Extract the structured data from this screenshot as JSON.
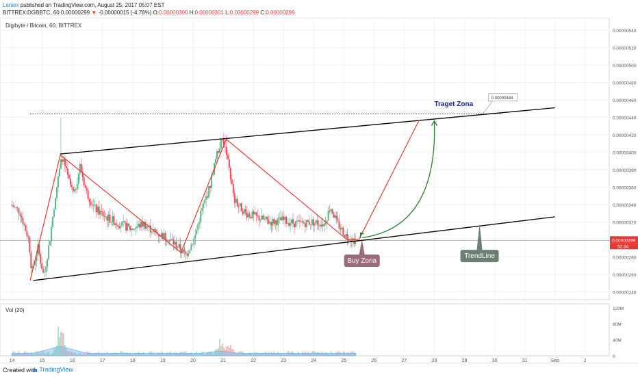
{
  "header": {
    "author": "Leniex",
    "published": "published on TradingView.com, August 25, 2017 05:07 EST",
    "symbol_line": "BITTREX:DGBBTC, 60",
    "last": "0.00000299",
    "arrow": "▼",
    "change": "-0.00000015 (-4.78%)",
    "o_label": "O:",
    "o_val": "0.00000300",
    "h_label": "H:",
    "h_val": "0.00000301",
    "l_label": "L:",
    "l_val": "0.00000299",
    "c_label": "C:",
    "c_val": "0.00000299"
  },
  "chart_title": "Digibyte / Bitcoin, 60, BITTREX",
  "price_axis": {
    "labels": [
      "0.00000540",
      "0.00000520",
      "0.00000500",
      "0.00000480",
      "0.00000460",
      "0.00000440",
      "0.00000420",
      "0.00000400",
      "0.00000380",
      "0.00000360",
      "0.00000340",
      "0.00000320",
      "0.00000300",
      "0.00000280",
      "0.00000260",
      "0.00000240"
    ],
    "current_price": "0.00000299",
    "countdown": "52:34"
  },
  "volume_axis": {
    "labels": [
      "120M",
      "80M",
      "40M",
      "0"
    ]
  },
  "volume_label": "Vol (20)",
  "x_axis": {
    "labels": [
      "14",
      "15",
      "16",
      "17",
      "18",
      "19",
      "20",
      "21",
      "22",
      "23",
      "24",
      "25",
      "26",
      "27",
      "28",
      "29",
      "30",
      "31",
      "Sep",
      "2"
    ]
  },
  "annotations": {
    "target_label": "Traget Zona",
    "target_price": "0.00000444",
    "buy_label": "Buy Zona",
    "trendline_label": "TrendLine"
  },
  "colors": {
    "up": "#53b987",
    "down": "#eb4d5c",
    "red_line": "#e53935",
    "green_arrow": "#2e7d32",
    "buy_box": "#9c6b78",
    "trend_box": "#6b7f72",
    "target_text": "#1a237e",
    "volume_ma": "#6fb7e8"
  },
  "chart_data": {
    "type": "candlestick",
    "symbol": "BITTREX:DGBBTC",
    "interval": "60",
    "ylim": [
      2.31e-06,
      5.51e-06
    ],
    "x_days": [
      14,
      15,
      16,
      17,
      18,
      19,
      20,
      21,
      22,
      23,
      24,
      25,
      26,
      27,
      28,
      29,
      30,
      31,
      32,
      33
    ],
    "price_path": [
      [
        14.0,
        3.4e-06
      ],
      [
        14.3,
        3.32e-06
      ],
      [
        14.6,
        3e-06
      ],
      [
        14.7,
        2.62e-06
      ],
      [
        14.9,
        2.9e-06
      ],
      [
        15.1,
        2.58e-06
      ],
      [
        15.3,
        3e-06
      ],
      [
        15.5,
        3.55e-06
      ],
      [
        15.7,
        3.95e-06
      ],
      [
        15.9,
        3.7e-06
      ],
      [
        16.1,
        3.5e-06
      ],
      [
        16.3,
        3.85e-06
      ],
      [
        16.5,
        3.55e-06
      ],
      [
        16.8,
        3.35e-06
      ],
      [
        17.2,
        3.25e-06
      ],
      [
        17.6,
        3.18e-06
      ],
      [
        18.0,
        3.12e-06
      ],
      [
        18.4,
        3.18e-06
      ],
      [
        18.8,
        3.08e-06
      ],
      [
        19.2,
        3.02e-06
      ],
      [
        19.6,
        2.9e-06
      ],
      [
        19.8,
        2.82e-06
      ],
      [
        20.1,
        3.02e-06
      ],
      [
        20.3,
        3.3e-06
      ],
      [
        20.6,
        3.6e-06
      ],
      [
        20.8,
        3.95e-06
      ],
      [
        21.0,
        4.13e-06
      ],
      [
        21.2,
        3.95e-06
      ],
      [
        21.4,
        3.45e-06
      ],
      [
        21.8,
        3.3e-06
      ],
      [
        22.2,
        3.25e-06
      ],
      [
        22.6,
        3.2e-06
      ],
      [
        23.0,
        3.22e-06
      ],
      [
        23.5,
        3.18e-06
      ],
      [
        24.0,
        3.2e-06
      ],
      [
        24.4,
        3.18e-06
      ],
      [
        24.6,
        3.38e-06
      ],
      [
        24.8,
        3.2e-06
      ],
      [
        25.1,
        3.05e-06
      ],
      [
        25.4,
        2.99e-06
      ]
    ],
    "spikes": [
      [
        15.6,
        4.4e-06
      ],
      [
        21.1,
        4.2e-06
      ]
    ],
    "volume_peaks": [
      [
        15.6,
        95000000
      ],
      [
        20.9,
        50000000
      ],
      [
        21.2,
        35000000
      ]
    ],
    "trendline_lower": [
      [
        14.7,
        2.53e-06
      ],
      [
        32.0,
        3.26e-06
      ]
    ],
    "trendline_upper": [
      [
        15.6,
        3.98e-06
      ],
      [
        32.0,
        4.51e-06
      ]
    ],
    "target_dotted_level": 4.44e-06,
    "current_price": 2.99e-06,
    "red_zigzag": [
      [
        14.6,
        2.53e-06
      ],
      [
        15.6,
        3.97e-06
      ],
      [
        19.6,
        2.85e-06
      ],
      [
        21.1,
        4.15e-06
      ],
      [
        25.1,
        3e-06
      ],
      [
        25.5,
        3e-06
      ],
      [
        27.5,
        4.37e-06
      ]
    ],
    "green_arc": {
      "from": [
        25.6,
        3.02e-06
      ],
      "to": [
        28.0,
        4.36e-06
      ]
    }
  }
}
